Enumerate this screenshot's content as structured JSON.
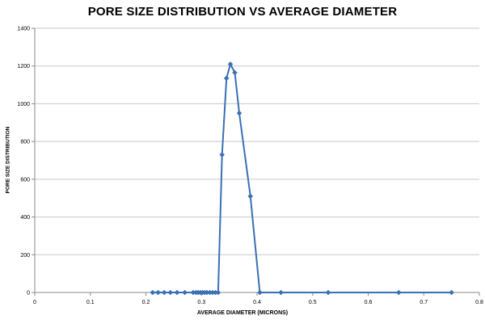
{
  "chart_data": {
    "type": "line",
    "title": "PORE SIZE DISTRIBUTION VS AVERAGE DIAMETER",
    "xlabel": "AVERAGE DIAMETER (MICRONS)",
    "ylabel": "PORE SIZE DISTRIBUTION",
    "xlim": [
      0,
      0.8
    ],
    "ylim": [
      0,
      1400
    ],
    "x_ticks": [
      0,
      0.1,
      0.2,
      0.3,
      0.4,
      0.5,
      0.6,
      0.7,
      0.8
    ],
    "x_tick_labels": [
      "0",
      "0.1",
      "0.2",
      "0.3",
      "0.4",
      "0.5",
      "0.6",
      "0.7",
      "0.8"
    ],
    "y_ticks": [
      0,
      200,
      400,
      600,
      800,
      1000,
      1200,
      1400
    ],
    "y_tick_labels": [
      "0",
      "200",
      "400",
      "600",
      "800",
      "1000",
      "1200",
      "1400"
    ],
    "grid": "horizontal",
    "legend": "none",
    "color": "#3a70b4",
    "series": [
      {
        "x": [
          0.212,
          0.222,
          0.233,
          0.244,
          0.256,
          0.27,
          0.285,
          0.29,
          0.294,
          0.298,
          0.302,
          0.306,
          0.31,
          0.315,
          0.32,
          0.325,
          0.33,
          0.337,
          0.345,
          0.352,
          0.36,
          0.368,
          0.388,
          0.405,
          0.443,
          0.528,
          0.655,
          0.75
        ],
        "y": [
          0,
          0,
          0,
          0,
          0,
          0,
          0,
          0,
          0,
          0,
          0,
          0,
          0,
          0,
          0,
          0,
          0,
          730,
          1135,
          1210,
          1165,
          950,
          510,
          0,
          0,
          0,
          0,
          0
        ]
      }
    ]
  }
}
